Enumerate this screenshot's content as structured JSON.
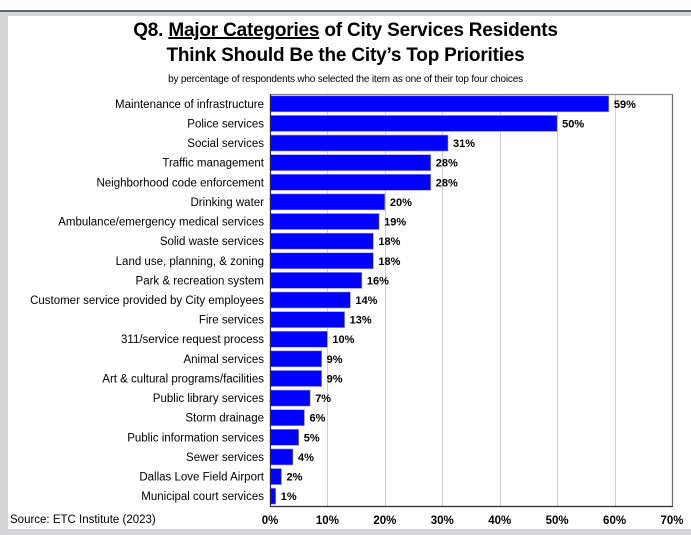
{
  "chart_data": {
    "type": "bar",
    "orientation": "horizontal",
    "title_prefix": "Q8. ",
    "title_underlined": "Major Categories",
    "title_line1_suffix": " of City Services Residents",
    "title_line2": "Think Should Be the City’s Top Priorities",
    "subtitle": "by percentage of respondents who selected the item as one of their top four choices",
    "categories": [
      "Maintenance of infrastructure",
      "Police services",
      "Social services",
      "Traffic management",
      "Neighborhood code enforcement",
      "Drinking water",
      "Ambulance/emergency medical services",
      "Solid waste services",
      "Land use, planning, & zoning",
      "Park & recreation system",
      "Customer service provided by City employees",
      "Fire services",
      "311/service request process",
      "Animal services",
      "Art & cultural programs/facilities",
      "Public library services",
      "Storm drainage",
      "Public information services",
      "Sewer services",
      "Dallas Love Field Airport",
      "Municipal court services"
    ],
    "values": [
      59,
      50,
      31,
      28,
      28,
      20,
      19,
      18,
      18,
      16,
      14,
      13,
      10,
      9,
      9,
      7,
      6,
      5,
      4,
      2,
      1
    ],
    "value_labels": [
      "59%",
      "50%",
      "31%",
      "28%",
      "28%",
      "20%",
      "19%",
      "18%",
      "18%",
      "16%",
      "14%",
      "13%",
      "10%",
      "9%",
      "9%",
      "7%",
      "6%",
      "5%",
      "4%",
      "2%",
      "1%"
    ],
    "xlim": [
      0,
      70
    ],
    "xticks": [
      0,
      10,
      20,
      30,
      40,
      50,
      60,
      70
    ],
    "xtick_labels": [
      "0%",
      "10%",
      "20%",
      "30%",
      "40%",
      "50%",
      "60%",
      "70%"
    ],
    "xlabel": "",
    "ylabel": "",
    "grid": true,
    "legend": "none",
    "bar_color": "#0000ff",
    "grid_color": "#d0d0d0",
    "source": "Source:   ETC Institute (2023)"
  }
}
